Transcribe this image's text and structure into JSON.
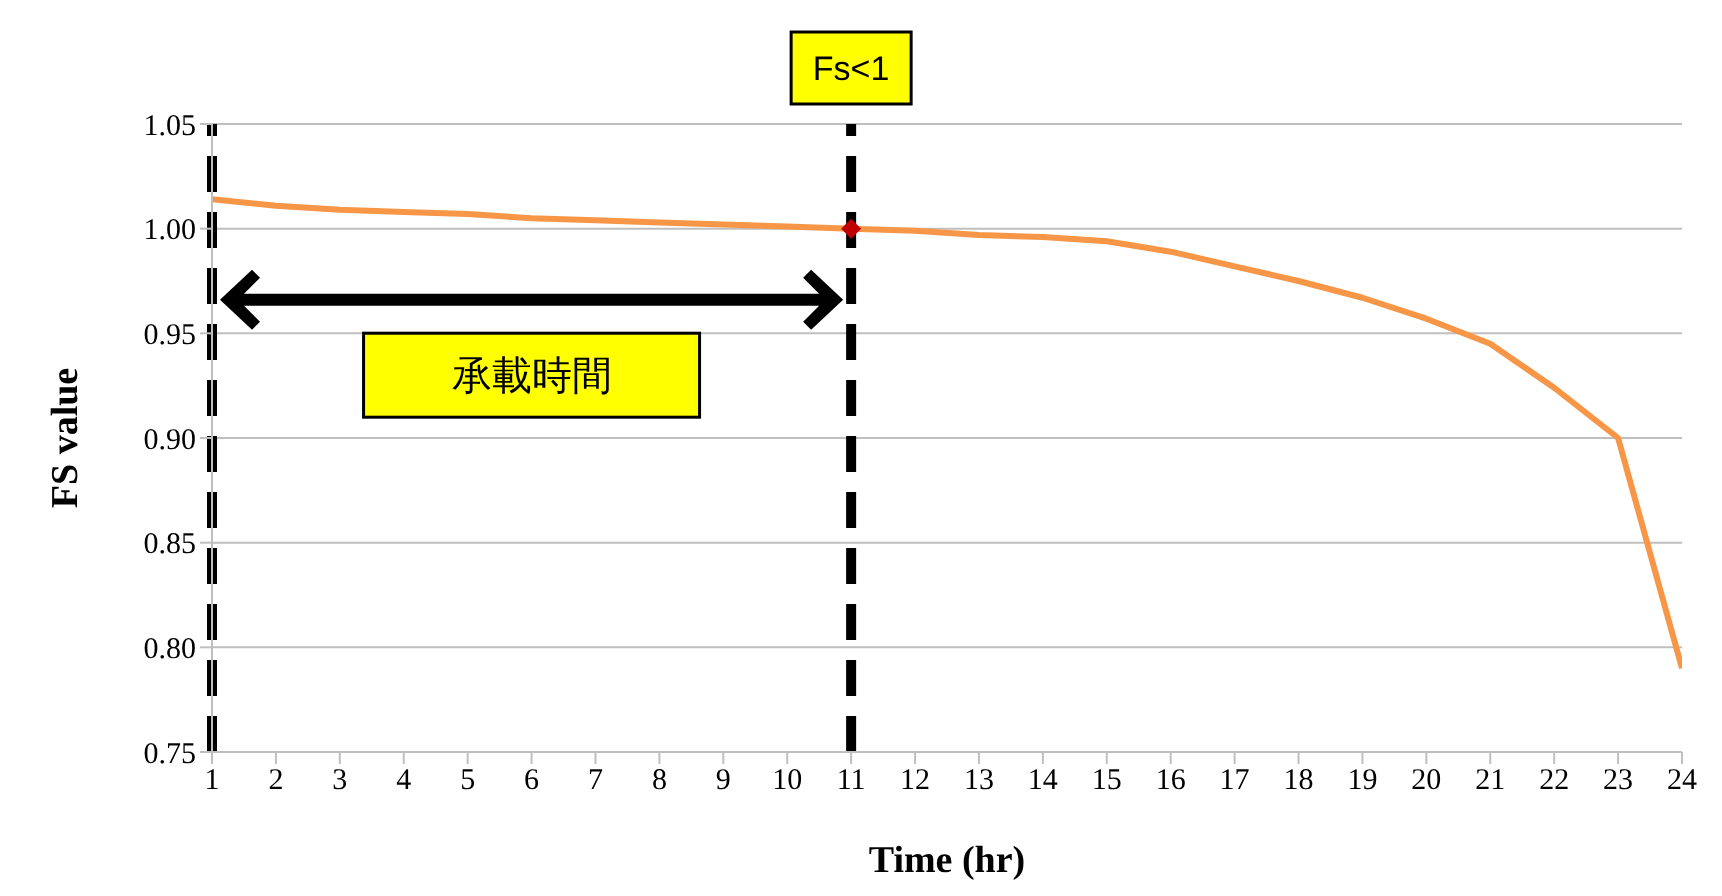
{
  "chart_data": {
    "type": "line",
    "xlabel": "Time (hr)",
    "ylabel": "FS value",
    "x": [
      1,
      2,
      3,
      4,
      5,
      6,
      7,
      8,
      9,
      10,
      11,
      12,
      13,
      14,
      15,
      16,
      17,
      18,
      19,
      20,
      21,
      22,
      23,
      24
    ],
    "series": [
      {
        "color": "#f79646",
        "values": [
          1.014,
          1.011,
          1.009,
          1.008,
          1.007,
          1.005,
          1.004,
          1.003,
          1.002,
          1.001,
          1.0,
          0.999,
          0.997,
          0.996,
          0.994,
          0.989,
          0.982,
          0.975,
          0.967,
          0.957,
          0.945,
          0.924,
          0.9,
          0.79
        ]
      },
      {
        "type": "scatter",
        "color": "#c00000",
        "x": [
          11
        ],
        "values": [
          1.0
        ],
        "marker": "diamond"
      }
    ],
    "xlim": [
      1,
      24
    ],
    "xticks": [
      1,
      2,
      3,
      4,
      5,
      6,
      7,
      8,
      9,
      10,
      11,
      12,
      13,
      14,
      15,
      16,
      17,
      18,
      19,
      20,
      21,
      22,
      23,
      24
    ],
    "ylim": [
      0.75,
      1.05
    ],
    "yticks": [
      0.75,
      {
        "value": 0.8,
        "label": "0.80"
      },
      0.85,
      {
        "value": 0.9,
        "label": "0.90"
      },
      0.95,
      {
        "value": 1.0,
        "label": "1.00"
      },
      1.05
    ],
    "grid": "y",
    "marker": "none",
    "line_style": "solid",
    "ref_lines": [
      {
        "axis": "x",
        "value": 1,
        "color": "#000000",
        "line_style": "dashed"
      },
      {
        "axis": "x",
        "value": 11,
        "label": "Fs<1",
        "color": "#000000",
        "line_style": "dashed"
      }
    ],
    "annotations": [
      "承載時間"
    ]
  }
}
